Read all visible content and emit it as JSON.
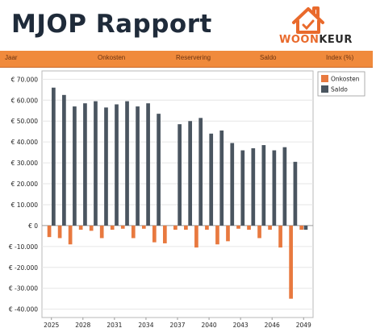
{
  "report": {
    "title": "MJOP Rapport"
  },
  "logo": {
    "brand_part1": "WOON",
    "brand_part2": "KEUR",
    "orange": "#e96a2c",
    "dark": "#2b2b2b"
  },
  "table_header": [
    "Jaar",
    "Onkosten",
    "Reservering",
    "Saldo",
    "Index (%)"
  ],
  "colors": {
    "onkosten": "#e8793f",
    "saldo": "#4a5560",
    "header": "#f08a3c"
  },
  "chart_data": {
    "type": "bar",
    "x": [
      2025,
      2026,
      2027,
      2028,
      2029,
      2030,
      2031,
      2032,
      2033,
      2034,
      2035,
      2036,
      2037,
      2038,
      2039,
      2040,
      2041,
      2042,
      2043,
      2044,
      2045,
      2046,
      2047,
      2048,
      2049
    ],
    "series": [
      {
        "name": "Onkosten",
        "color": "#e8793f",
        "values": [
          -5500,
          -6000,
          -9000,
          -2000,
          -2500,
          -6000,
          -2000,
          -1500,
          -6000,
          -1500,
          -8000,
          -8500,
          -2000,
          -2000,
          -10500,
          -2000,
          -9000,
          -7500,
          -1500,
          -2000,
          -6000,
          -2000,
          -10500,
          -35000,
          -2000
        ]
      },
      {
        "name": "Saldo",
        "color": "#4a5560",
        "values": [
          66000,
          62500,
          57000,
          58500,
          59500,
          56500,
          58000,
          59500,
          57000,
          58500,
          53500,
          0,
          48500,
          50000,
          51500,
          44000,
          45500,
          39500,
          36000,
          37000,
          38500,
          36000,
          37500,
          30500,
          -2000
        ]
      }
    ],
    "xticks": [
      "2025",
      "2028",
      "2031",
      "2034",
      "2037",
      "2040",
      "2043",
      "2046",
      "2049"
    ],
    "yticks": [
      "€ 70.000",
      "€ 60.000",
      "€ 50.000",
      "€ 40.000",
      "€ 30.000",
      "€ 20.000",
      "€ 10.000",
      "€ 0",
      "€ -10.000",
      "€ -20.000",
      "€ -30.000",
      "€ -40.000"
    ],
    "ytick_values": [
      70000,
      60000,
      50000,
      40000,
      30000,
      20000,
      10000,
      0,
      -10000,
      -20000,
      -30000,
      -40000
    ],
    "ylim": [
      -44000,
      74000
    ],
    "grid": true,
    "legend_position": "top-right"
  }
}
